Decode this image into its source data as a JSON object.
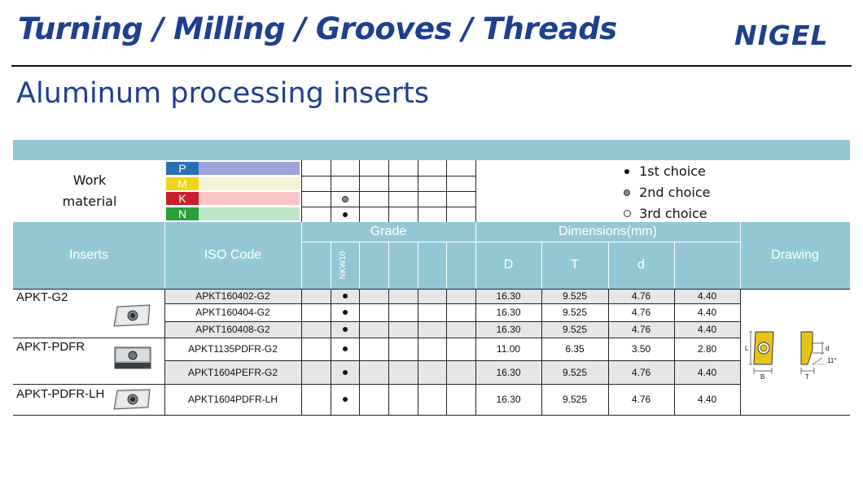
{
  "header": {
    "title": "Turning / Milling / Grooves / Threads",
    "logo": "NIGEL",
    "subtitle": "Aluminum processing inserts"
  },
  "work_material": {
    "label_line1": "Work",
    "label_line2": "material",
    "materials": [
      {
        "letter": "P",
        "letter_color": "#2b6fb5",
        "bar_color": "#9ea3d9",
        "grade_mark": ""
      },
      {
        "letter": "M",
        "letter_color": "#f2d21b",
        "bar_color": "#f4f2d4",
        "grade_mark": ""
      },
      {
        "letter": "K",
        "letter_color": "#c8202a",
        "bar_color": "#f8c6c6",
        "grade_mark": "2nd"
      },
      {
        "letter": "N",
        "letter_color": "#2b9e3e",
        "bar_color": "#bfe5c8",
        "grade_mark": "1st"
      }
    ]
  },
  "legend": {
    "first": "1st choice",
    "second": "2nd choice",
    "third": "3rd choice"
  },
  "table_header": {
    "inserts": "Inserts",
    "iso_code": "ISO Code",
    "grade": "Grade",
    "grade_name": "NKW10",
    "dimensions": "Dimensions(mm)",
    "dim_D": "D",
    "dim_T": "T",
    "dim_d": "d",
    "dim_4": "",
    "drawing": "Drawing"
  },
  "groups": [
    {
      "name": "APKT-G2"
    },
    {
      "name": "APKT-PDFR"
    },
    {
      "name": "APKT-PDFR-LH"
    }
  ],
  "rows": [
    {
      "iso": "APKT160402-G2",
      "D": "16.30",
      "T": "9.525",
      "d": "4.76",
      "v4": "4.40"
    },
    {
      "iso": "APKT160404-G2",
      "D": "16.30",
      "T": "9.525",
      "d": "4.76",
      "v4": "4.40"
    },
    {
      "iso": "APKT160408-G2",
      "D": "16.30",
      "T": "9.525",
      "d": "4.76",
      "v4": "4.40"
    },
    {
      "iso": "APKT1135PDFR-G2",
      "D": "11.00",
      "T": "6.35",
      "d": "3.50",
      "v4": "2.80"
    },
    {
      "iso": "APKT1604PEFR-G2",
      "D": "16.30",
      "T": "9.525",
      "d": "4.76",
      "v4": "4.40"
    },
    {
      "iso": "APKT1604PDFR-LH",
      "D": "16.30",
      "T": "9.525",
      "d": "4.76",
      "v4": "4.40"
    }
  ],
  "drawing_labels": {
    "L": "L",
    "B": "B",
    "T": "T",
    "d": "d",
    "angle": "11°"
  }
}
